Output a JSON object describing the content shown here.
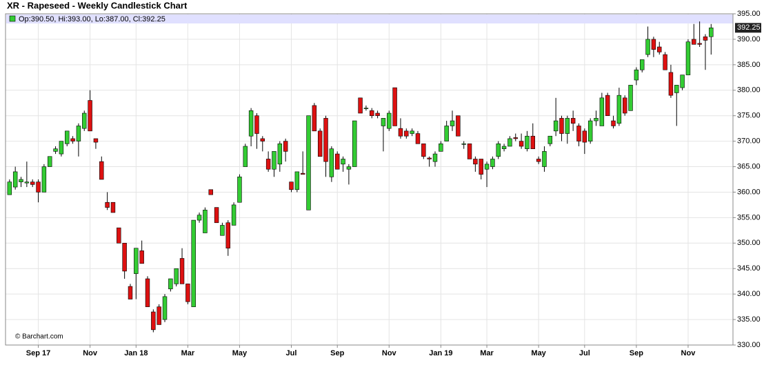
{
  "chart_data": {
    "type": "candlestick",
    "title": "XR - Rapeseed - Weekly Candlestick Chart",
    "legend_text": "Op:390.50, Hi:393.00, Lo:387.00, Cl:392.25",
    "last_price_label": "392.25",
    "credit": "© Barchart.com",
    "up_color": "#33cc33",
    "down_color": "#dd1111",
    "grid": true,
    "ohlc": [
      [
        359.5,
        362.5,
        359.5,
        362
      ],
      [
        361,
        365,
        360.5,
        364
      ],
      [
        362,
        363,
        361,
        362.5
      ],
      [
        361.8,
        366,
        361,
        362
      ],
      [
        362,
        362.5,
        361,
        361.5
      ],
      [
        362,
        362.5,
        358,
        360
      ],
      [
        360,
        365.5,
        360,
        365
      ],
      [
        365,
        367,
        365,
        367
      ],
      [
        368,
        369,
        367.5,
        368.5
      ],
      [
        367.5,
        370,
        367,
        370
      ],
      [
        369.5,
        372,
        369,
        372
      ],
      [
        370.5,
        371,
        369.5,
        370
      ],
      [
        370,
        373.5,
        367,
        373
      ],
      [
        372.5,
        376,
        372,
        375.5
      ],
      [
        378,
        380,
        372,
        372
      ],
      [
        370.5,
        370.5,
        368.5,
        369.8
      ],
      [
        366,
        367,
        362.5,
        362.5
      ],
      [
        358,
        360,
        356.5,
        357
      ],
      [
        358,
        358,
        356,
        356
      ],
      [
        353,
        353,
        350,
        350
      ],
      [
        350,
        350,
        343,
        344.5
      ],
      [
        341.5,
        342,
        339,
        339
      ],
      [
        344,
        349,
        339,
        349
      ],
      [
        348.5,
        350.5,
        346,
        346
      ],
      [
        343,
        343.5,
        337.5,
        337.5
      ],
      [
        336.5,
        337,
        332.5,
        333
      ],
      [
        337.5,
        338,
        334,
        334
      ],
      [
        335,
        340,
        334.5,
        339.5
      ],
      [
        341,
        343,
        340.5,
        343
      ],
      [
        342,
        345,
        341.5,
        345
      ],
      [
        347,
        349,
        342,
        342
      ],
      [
        342,
        342,
        338,
        338.5
      ],
      [
        337.5,
        354.5,
        337.5,
        354.5
      ],
      [
        354.5,
        356,
        354,
        355.5
      ],
      [
        352,
        357,
        352,
        356.5
      ],
      [
        360.5,
        360.5,
        359.5,
        359.5
      ],
      [
        357,
        357,
        354,
        354
      ],
      [
        351.5,
        354,
        351.5,
        353.5
      ],
      [
        354,
        354.5,
        347.5,
        349
      ],
      [
        353.5,
        358,
        353.5,
        357.5
      ],
      [
        358,
        363.5,
        358,
        363
      ],
      [
        365,
        369.5,
        365,
        369
      ],
      [
        371,
        376.5,
        369,
        376
      ],
      [
        375,
        375.5,
        368.5,
        371.5
      ],
      [
        370.5,
        371,
        368,
        370
      ],
      [
        366.5,
        368,
        364,
        364.5
      ],
      [
        364.5,
        368,
        363,
        368
      ],
      [
        365.5,
        370,
        364,
        369.5
      ],
      [
        370,
        370.5,
        366,
        368
      ],
      [
        362,
        362,
        360,
        360.5
      ],
      [
        360.5,
        364,
        360,
        364
      ],
      [
        363.7,
        368,
        363.5,
        363.5
      ],
      [
        356.5,
        375,
        356.5,
        375
      ],
      [
        377,
        377.5,
        372,
        372
      ],
      [
        372,
        372.5,
        367,
        367
      ],
      [
        374.5,
        375,
        363,
        366
      ],
      [
        363,
        369,
        362,
        368.5
      ],
      [
        367.5,
        368,
        364.5,
        364.5
      ],
      [
        365.5,
        367,
        364,
        366.5
      ],
      [
        364.5,
        365.5,
        361.5,
        365
      ],
      [
        365,
        374,
        365,
        374
      ],
      [
        378.5,
        378.5,
        375.5,
        375.5
      ],
      [
        376.5,
        377,
        376,
        376.5
      ],
      [
        376,
        376.5,
        374.5,
        375
      ],
      [
        375.5,
        376,
        374.5,
        375
      ],
      [
        373,
        374.5,
        368,
        374.5
      ],
      [
        372.5,
        376,
        372,
        375.5
      ],
      [
        380.5,
        380.5,
        373,
        373
      ],
      [
        372.5,
        374.5,
        370.5,
        371
      ],
      [
        372,
        372.5,
        370.5,
        371
      ],
      [
        371.5,
        372.5,
        371,
        372
      ],
      [
        371.5,
        372,
        369.5,
        369.5
      ],
      [
        369.5,
        369.5,
        366.5,
        367
      ],
      [
        366.7,
        367,
        365,
        366.5
      ],
      [
        366,
        368,
        365,
        367.5
      ],
      [
        368,
        370,
        368,
        369.5
      ],
      [
        370,
        374,
        370,
        373
      ],
      [
        373,
        376,
        372,
        374
      ],
      [
        375,
        375,
        371,
        371
      ],
      [
        369.5,
        370,
        368.5,
        369.5
      ],
      [
        369.5,
        369.5,
        366.5,
        366.5
      ],
      [
        366.5,
        367,
        364,
        365.5
      ],
      [
        366.5,
        366.5,
        362.5,
        363.5
      ],
      [
        364.5,
        366,
        361,
        365.5
      ],
      [
        365,
        367,
        364.5,
        366.5
      ],
      [
        367,
        370,
        366.5,
        369.5
      ],
      [
        368.5,
        369.5,
        368,
        369
      ],
      [
        369,
        371,
        369,
        370.5
      ],
      [
        370.7,
        371.5,
        370,
        370.5
      ],
      [
        370,
        371.5,
        368.5,
        369
      ],
      [
        368.5,
        372,
        368,
        371
      ],
      [
        371,
        373.5,
        368.5,
        368.5
      ],
      [
        366.5,
        367,
        365.5,
        366
      ],
      [
        365,
        369,
        364,
        368
      ],
      [
        369.5,
        371,
        369,
        371
      ],
      [
        372,
        378.5,
        371,
        374
      ],
      [
        374.5,
        375,
        370,
        371.5
      ],
      [
        371.5,
        375,
        369.5,
        374.5
      ],
      [
        374.5,
        376,
        372,
        373.5
      ],
      [
        373,
        373.5,
        369,
        370
      ],
      [
        372,
        372.5,
        367.5,
        369.8
      ],
      [
        370,
        374.5,
        369.5,
        374
      ],
      [
        374,
        376,
        373,
        374.5
      ],
      [
        373,
        379.5,
        373,
        378.5
      ],
      [
        379,
        379.5,
        375,
        375
      ],
      [
        374,
        375,
        372.5,
        373
      ],
      [
        373.5,
        380.5,
        373,
        379
      ],
      [
        378.5,
        379,
        375,
        375.5
      ],
      [
        376,
        381,
        376,
        381
      ],
      [
        382,
        384.5,
        381,
        384
      ],
      [
        384,
        386,
        383.5,
        386
      ],
      [
        387,
        392.5,
        386.5,
        390
      ],
      [
        390,
        390.5,
        386.5,
        388
      ],
      [
        388.5,
        389.5,
        387,
        387.5
      ],
      [
        387,
        387.5,
        384,
        384
      ],
      [
        383.5,
        385,
        378.5,
        379
      ],
      [
        379.5,
        381,
        373,
        381
      ],
      [
        380.5,
        383,
        380,
        383
      ],
      [
        383,
        390,
        383,
        389.5
      ],
      [
        390,
        393,
        389,
        389
      ],
      [
        389.2,
        393.5,
        388.5,
        389
      ],
      [
        390.5,
        391,
        384,
        389.8
      ],
      [
        390.5,
        393,
        387,
        392.25
      ]
    ],
    "xlim": [
      -0.7,
      125.8
    ],
    "xticks": [
      {
        "value": 5,
        "label": "Sep 17"
      },
      {
        "value": 14,
        "label": "Nov"
      },
      {
        "value": 22,
        "label": "Jan 18"
      },
      {
        "value": 31,
        "label": "Mar"
      },
      {
        "value": 40,
        "label": "May"
      },
      {
        "value": 49,
        "label": "Jul"
      },
      {
        "value": 57,
        "label": "Sep"
      },
      {
        "value": 66,
        "label": "Nov"
      },
      {
        "value": 75,
        "label": "Jan 19"
      },
      {
        "value": 83,
        "label": "Mar"
      },
      {
        "value": 92,
        "label": "May"
      },
      {
        "value": 100,
        "label": "Jul"
      },
      {
        "value": 109,
        "label": "Sep"
      },
      {
        "value": 118,
        "label": "Nov"
      }
    ],
    "ylim": [
      330,
      395
    ],
    "yticks": [
      {
        "value": 330,
        "label": "330.00"
      },
      {
        "value": 335,
        "label": "335.00"
      },
      {
        "value": 340,
        "label": "340.00"
      },
      {
        "value": 345,
        "label": "345.00"
      },
      {
        "value": 350,
        "label": "350.00"
      },
      {
        "value": 355,
        "label": "355.00"
      },
      {
        "value": 360,
        "label": "360.00"
      },
      {
        "value": 365,
        "label": "365.00"
      },
      {
        "value": 370,
        "label": "370.00"
      },
      {
        "value": 375,
        "label": "375.00"
      },
      {
        "value": 380,
        "label": "380.00"
      },
      {
        "value": 385,
        "label": "385.00"
      },
      {
        "value": 390,
        "label": "390.00"
      },
      {
        "value": 395,
        "label": "395.00"
      }
    ]
  }
}
